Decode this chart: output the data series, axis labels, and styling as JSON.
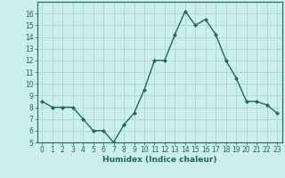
{
  "x": [
    0,
    1,
    2,
    3,
    4,
    5,
    6,
    7,
    8,
    9,
    10,
    11,
    12,
    13,
    14,
    15,
    16,
    17,
    18,
    19,
    20,
    21,
    22,
    23
  ],
  "y": [
    8.5,
    8.0,
    8.0,
    8.0,
    7.0,
    6.0,
    6.0,
    5.0,
    6.5,
    7.5,
    9.5,
    12.0,
    12.0,
    14.2,
    16.2,
    15.0,
    15.5,
    14.2,
    12.0,
    10.5,
    8.5,
    8.5,
    8.2,
    7.5
  ],
  "line_color": "#1a6b5c",
  "marker": "D",
  "marker_size": 2.0,
  "bg_color": "#cceeed",
  "grid_color": "#aad6d3",
  "xlabel": "Humidex (Indice chaleur)",
  "xlim": [
    -0.5,
    23.5
  ],
  "ylim": [
    5,
    17
  ],
  "yticks": [
    5,
    6,
    7,
    8,
    9,
    10,
    11,
    12,
    13,
    14,
    15,
    16
  ],
  "xticks": [
    0,
    1,
    2,
    3,
    4,
    5,
    6,
    7,
    8,
    9,
    10,
    11,
    12,
    13,
    14,
    15,
    16,
    17,
    18,
    19,
    20,
    21,
    22,
    23
  ],
  "tick_label_fontsize": 5.5,
  "xlabel_fontsize": 6.5,
  "border_color": "#1a6b5c",
  "linewidth": 1.0
}
